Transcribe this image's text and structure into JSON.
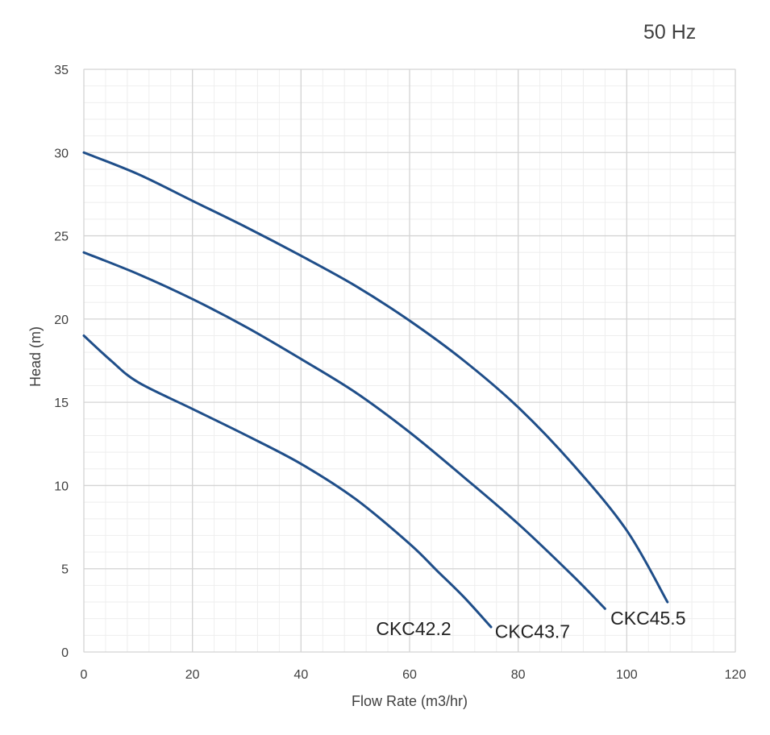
{
  "header": {
    "frequency_label": "50 Hz"
  },
  "chart_data": {
    "type": "line",
    "title": "",
    "xlabel": "Flow Rate (m3/hr)",
    "ylabel": "Head (m)",
    "xlim": [
      0,
      120
    ],
    "ylim": [
      0,
      35
    ],
    "x_ticks": [
      0,
      20,
      40,
      60,
      80,
      100,
      120
    ],
    "y_ticks": [
      0,
      5,
      10,
      15,
      20,
      25,
      30,
      35
    ],
    "x_minor_step": 4,
    "y_minor_step": 1,
    "grid": true,
    "line_color": "#1f4e89",
    "series": [
      {
        "name": "CKC42.2",
        "x": [
          0,
          5,
          10,
          20,
          30,
          40,
          50,
          60,
          65,
          70,
          75
        ],
        "y": [
          19,
          17.5,
          16.2,
          14.6,
          13.0,
          11.3,
          9.2,
          6.5,
          4.9,
          3.3,
          1.5
        ]
      },
      {
        "name": "CKC43.7",
        "x": [
          0,
          10,
          20,
          30,
          40,
          50,
          60,
          70,
          80,
          90,
          96
        ],
        "y": [
          24,
          22.7,
          21.2,
          19.5,
          17.6,
          15.6,
          13.2,
          10.5,
          7.7,
          4.6,
          2.6
        ]
      },
      {
        "name": "CKC45.5",
        "x": [
          0,
          10,
          20,
          30,
          40,
          50,
          60,
          70,
          80,
          90,
          100,
          107.5
        ],
        "y": [
          30,
          28.7,
          27.1,
          25.5,
          23.8,
          22.0,
          19.9,
          17.5,
          14.7,
          11.3,
          7.3,
          3.0
        ]
      }
    ]
  }
}
